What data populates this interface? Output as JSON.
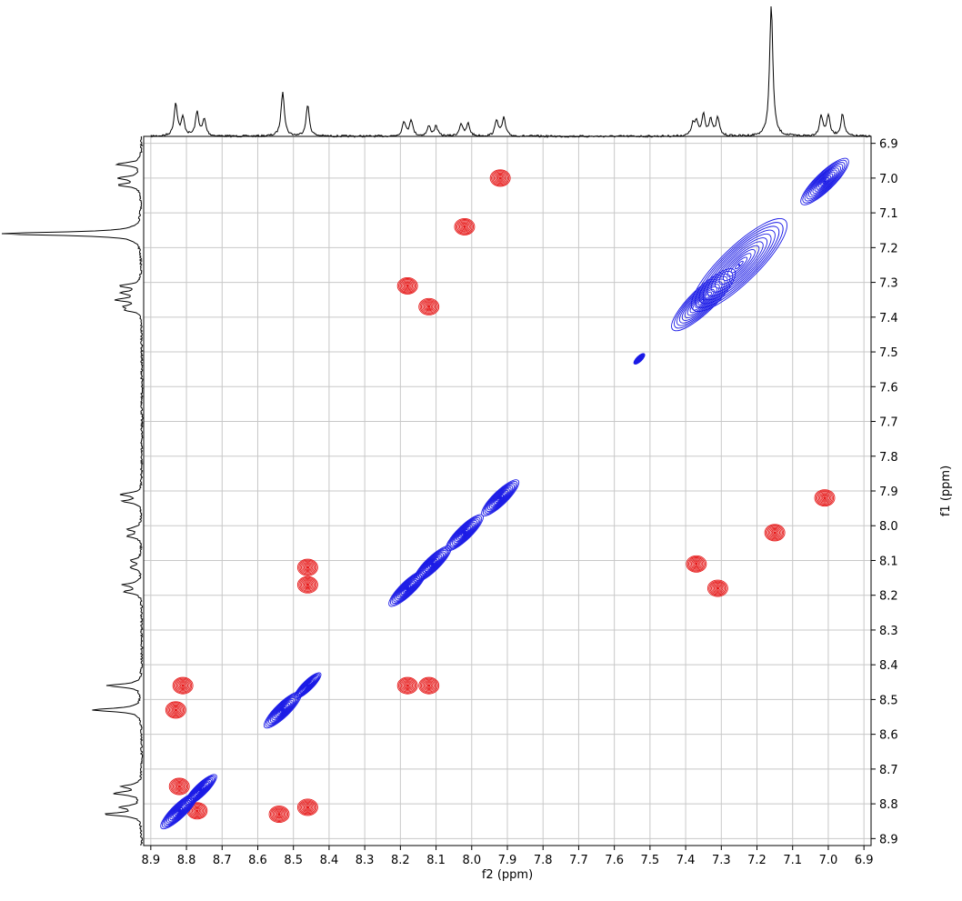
{
  "chart_data": {
    "type": "2d-nmr-contour",
    "xlabel": "f2 (ppm)",
    "ylabel": "f1 (ppm)",
    "x_axis": {
      "range": [
        8.92,
        6.88
      ],
      "reversed": true,
      "ticks": [
        8.9,
        8.8,
        8.7,
        8.6,
        8.5,
        8.4,
        8.3,
        8.2,
        8.1,
        8.0,
        7.9,
        7.8,
        7.7,
        7.6,
        7.5,
        7.4,
        7.3,
        7.2,
        7.1,
        7.0,
        6.9
      ],
      "tick_labels": [
        "8.9",
        "8.8",
        "8.7",
        "8.6",
        "8.5",
        "8.4",
        "8.3",
        "8.2",
        "8.1",
        "8.0",
        "7.9",
        "7.8",
        "7.7",
        "7.6",
        "7.5",
        "7.4",
        "7.3",
        "7.2",
        "7.1",
        "7.0",
        "6.9"
      ]
    },
    "y_axis": {
      "range": [
        6.88,
        8.92
      ],
      "position": "right",
      "ticks": [
        6.9,
        7.0,
        7.1,
        7.2,
        7.3,
        7.4,
        7.5,
        7.6,
        7.7,
        7.8,
        7.9,
        8.0,
        8.1,
        8.2,
        8.3,
        8.4,
        8.5,
        8.6,
        8.7,
        8.8,
        8.9
      ],
      "tick_labels": [
        "6.9",
        "7.0",
        "7.1",
        "7.2",
        "7.3",
        "7.4",
        "7.5",
        "7.6",
        "7.7",
        "7.8",
        "7.9",
        "8.0",
        "8.1",
        "8.2",
        "8.3",
        "8.4",
        "8.5",
        "8.6",
        "8.7",
        "8.8",
        "8.9"
      ]
    },
    "grid": true,
    "projection_1d": {
      "peaks": [
        {
          "ppm": 8.83,
          "height": 0.4
        },
        {
          "ppm": 8.81,
          "height": 0.22
        },
        {
          "ppm": 8.77,
          "height": 0.29
        },
        {
          "ppm": 8.75,
          "height": 0.2
        },
        {
          "ppm": 8.53,
          "height": 0.55
        },
        {
          "ppm": 8.46,
          "height": 0.38
        },
        {
          "ppm": 8.19,
          "height": 0.18
        },
        {
          "ppm": 8.17,
          "height": 0.2
        },
        {
          "ppm": 8.12,
          "height": 0.12
        },
        {
          "ppm": 8.1,
          "height": 0.12
        },
        {
          "ppm": 8.03,
          "height": 0.15
        },
        {
          "ppm": 8.01,
          "height": 0.15
        },
        {
          "ppm": 7.93,
          "height": 0.2
        },
        {
          "ppm": 7.91,
          "height": 0.22
        },
        {
          "ppm": 7.38,
          "height": 0.13
        },
        {
          "ppm": 7.37,
          "height": 0.16
        },
        {
          "ppm": 7.35,
          "height": 0.26
        },
        {
          "ppm": 7.33,
          "height": 0.2
        },
        {
          "ppm": 7.31,
          "height": 0.22
        },
        {
          "ppm": 7.16,
          "height": 1.6
        },
        {
          "ppm": 7.02,
          "height": 0.25
        },
        {
          "ppm": 7.0,
          "height": 0.25
        },
        {
          "ppm": 6.96,
          "height": 0.27
        }
      ]
    },
    "diagonal_peaks_blue": [
      {
        "x": 7.01,
        "y": 7.01,
        "spread": 0.09
      },
      {
        "x": 7.25,
        "y": 7.25,
        "spread": 0.18
      },
      {
        "x": 7.35,
        "y": 7.35,
        "spread": 0.12
      },
      {
        "x": 7.53,
        "y": 7.52,
        "spread": 0.02
      },
      {
        "x": 7.92,
        "y": 7.92,
        "spread": 0.07
      },
      {
        "x": 8.02,
        "y": 8.02,
        "spread": 0.07
      },
      {
        "x": 8.11,
        "y": 8.11,
        "spread": 0.07
      },
      {
        "x": 8.18,
        "y": 8.18,
        "spread": 0.07
      },
      {
        "x": 8.46,
        "y": 8.46,
        "spread": 0.05
      },
      {
        "x": 8.53,
        "y": 8.53,
        "spread": 0.07
      },
      {
        "x": 8.76,
        "y": 8.76,
        "spread": 0.06
      },
      {
        "x": 8.82,
        "y": 8.82,
        "spread": 0.07
      }
    ],
    "cross_peaks_red": [
      {
        "x": 7.92,
        "y": 7.0
      },
      {
        "x": 8.02,
        "y": 7.14
      },
      {
        "x": 8.18,
        "y": 7.31
      },
      {
        "x": 8.12,
        "y": 7.37
      },
      {
        "x": 8.46,
        "y": 8.12
      },
      {
        "x": 8.46,
        "y": 8.17
      },
      {
        "x": 8.18,
        "y": 8.46
      },
      {
        "x": 8.12,
        "y": 8.46
      },
      {
        "x": 8.81,
        "y": 8.46
      },
      {
        "x": 8.83,
        "y": 8.53
      },
      {
        "x": 8.82,
        "y": 8.75
      },
      {
        "x": 8.77,
        "y": 8.82
      },
      {
        "x": 8.54,
        "y": 8.83
      },
      {
        "x": 8.46,
        "y": 8.81
      },
      {
        "x": 7.01,
        "y": 7.92
      },
      {
        "x": 7.15,
        "y": 8.02
      },
      {
        "x": 7.37,
        "y": 8.11
      },
      {
        "x": 7.31,
        "y": 8.18
      }
    ],
    "colors": {
      "positive": "#1a1ae6",
      "negative": "#e61a1a",
      "trace": "#000000",
      "grid": "#c8c8c8"
    }
  }
}
